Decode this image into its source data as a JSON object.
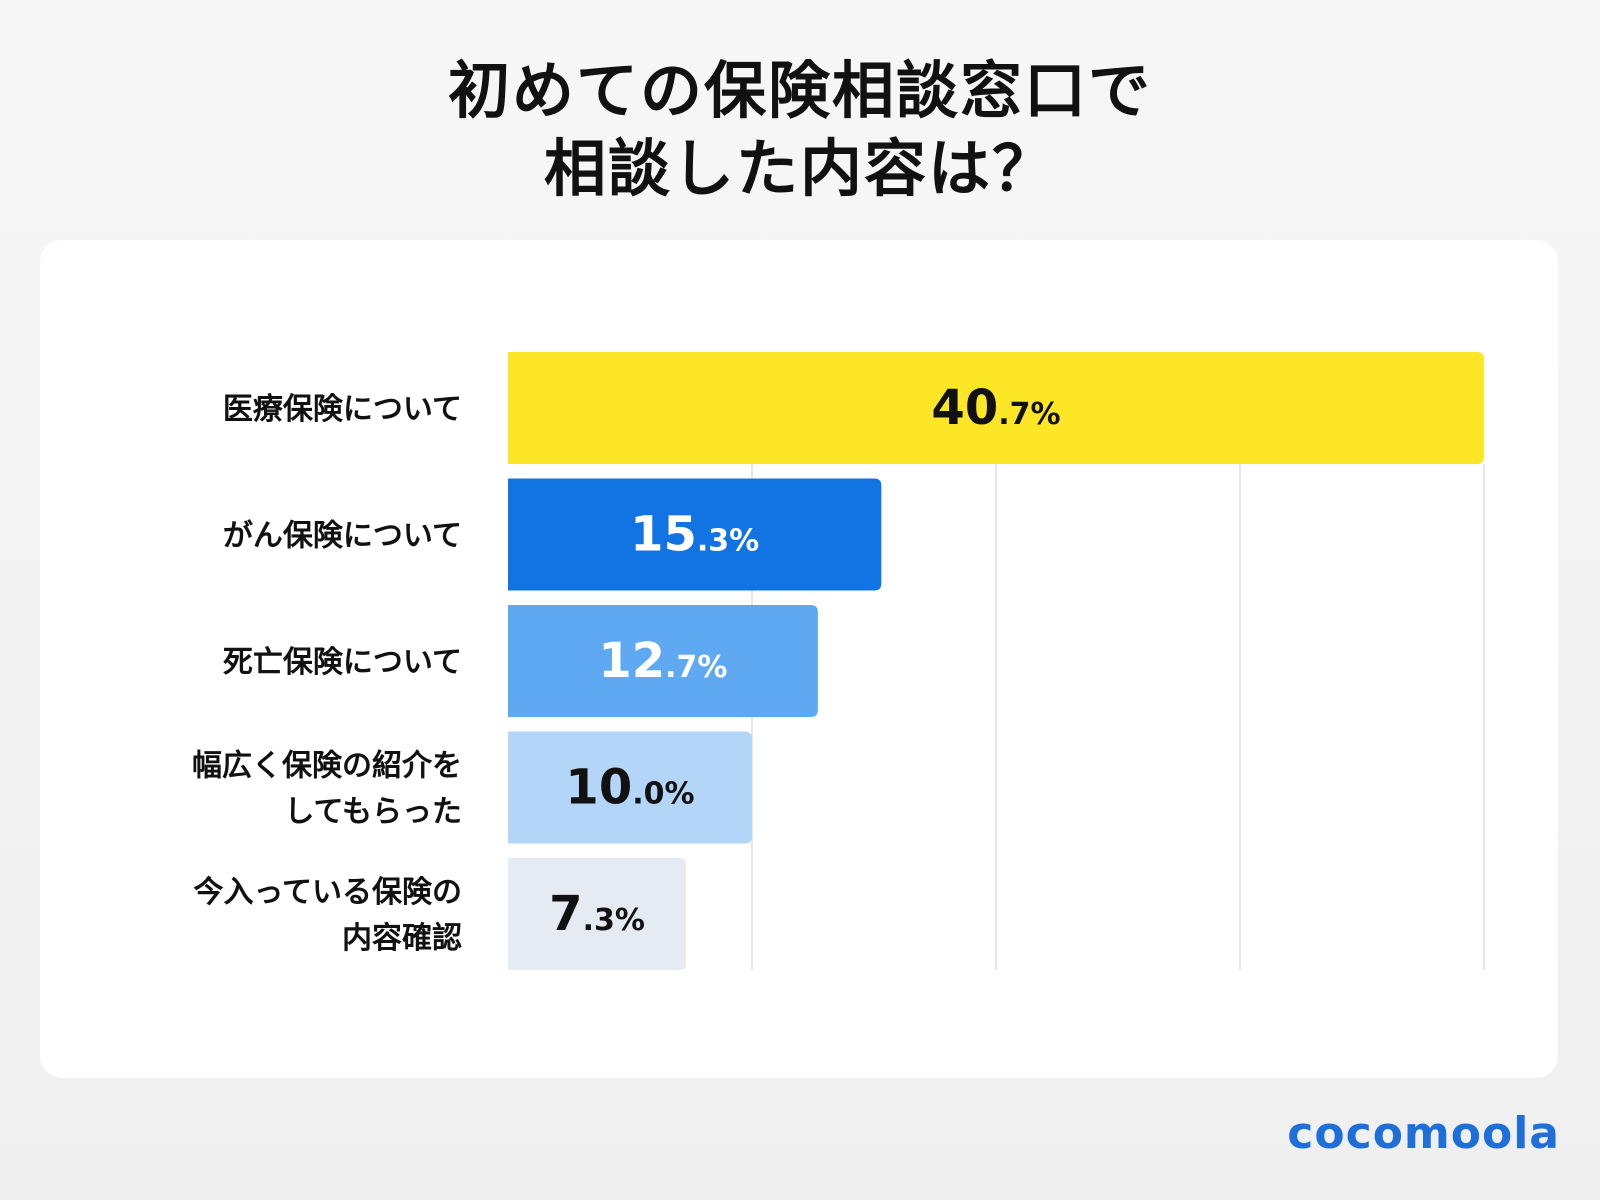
{
  "title_lines": [
    "初めての保険相談窓口で",
    "相談した内容は？"
  ],
  "brand": "cocomoola",
  "colors": {
    "bar1": "#fde625",
    "bar2": "#1273e3",
    "bar3": "#5ea9f1",
    "bar4": "#b3d5f8",
    "bar5": "#e6eaf2",
    "text_dark": "#111111",
    "text_light": "#ffffff",
    "grid": "#dddddd",
    "brand": "#1e6fd9"
  },
  "chart_data": {
    "type": "bar",
    "orientation": "horizontal",
    "title": "初めての保険相談窓口で相談した内容は？",
    "categories": [
      [
        "医療保険について"
      ],
      [
        "がん保険について"
      ],
      [
        "死亡保険について"
      ],
      [
        "幅広く保険の紹介を",
        "してもらった"
      ],
      [
        "今入っている保険の",
        "内容確認"
      ]
    ],
    "values": [
      40.7,
      15.3,
      12.7,
      10.0,
      7.3
    ],
    "value_labels": [
      {
        "int": "40",
        "dec": ".7%"
      },
      {
        "int": "15",
        "dec": ".3%"
      },
      {
        "int": "12",
        "dec": ".7%"
      },
      {
        "int": "10",
        "dec": ".0%"
      },
      {
        "int": "7",
        "dec": ".3%"
      }
    ],
    "xlim": [
      0,
      40
    ],
    "grid_values": [
      10,
      20,
      30,
      40
    ],
    "xlabel": "",
    "ylabel": ""
  }
}
